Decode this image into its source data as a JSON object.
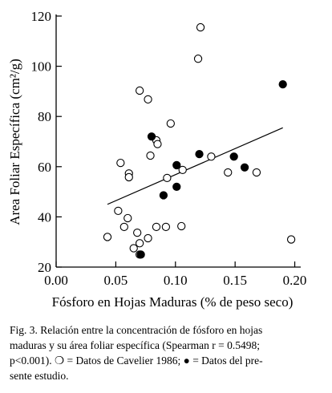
{
  "chart_data": {
    "type": "scatter",
    "x_label": "Fósforo en Hojas Maduras (% de peso seco)",
    "y_label": "Area Foliar Específica (cm²/g)",
    "xlim": [
      0,
      0.205
    ],
    "ylim": [
      20,
      120
    ],
    "xticks": [
      {
        "value": 0,
        "label": "0.00"
      },
      {
        "value": 0.05,
        "label": "0.05"
      },
      {
        "value": 0.1,
        "label": "0.10"
      },
      {
        "value": 0.15,
        "label": "0.15"
      },
      {
        "value": 0.2,
        "label": "0.20"
      }
    ],
    "yticks": [
      20,
      40,
      60,
      80,
      100,
      120
    ],
    "grid": false,
    "series": [
      {
        "marker": "open",
        "color": "#000000",
        "x": [
          0.121,
          0.119,
          0.07,
          0.077,
          0.096,
          0.084,
          0.085,
          0.079,
          0.054,
          0.061,
          0.061,
          0.093,
          0.106,
          0.13,
          0.144,
          0.168,
          0.052,
          0.06,
          0.057,
          0.084,
          0.092,
          0.105,
          0.068,
          0.077,
          0.043,
          0.197,
          0.065,
          0.07,
          0.07
        ],
        "values": [
          115.5,
          103,
          90.3,
          86.8,
          77.2,
          70.5,
          69,
          64.4,
          61.5,
          57.3,
          55.8,
          55.5,
          58.7,
          64,
          57.7,
          57.7,
          42.4,
          39.5,
          36,
          36,
          36,
          36.3,
          33.7,
          31.5,
          32,
          31,
          27.5,
          29.5,
          25
        ]
      },
      {
        "marker": "filled",
        "color": "#000000",
        "x": [
          0.19,
          0.08,
          0.12,
          0.101,
          0.149,
          0.158,
          0.101,
          0.09,
          0.071
        ],
        "values": [
          92.8,
          72,
          65,
          60.6,
          64,
          59.7,
          52,
          48.6,
          25
        ]
      }
    ],
    "trendline": {
      "x": [
        0.043,
        0.19
      ],
      "values": [
        45,
        75.5
      ]
    }
  },
  "caption": [
    "Fig. 3. Relación entre la concentración de fósforo en hojas",
    "maduras y su área foliar específica (Spearman r = 0.5498;",
    "p<0.001). ❍ = Datos de Cavelier 1986; ● = Datos del pre-",
    "sente estudio."
  ]
}
